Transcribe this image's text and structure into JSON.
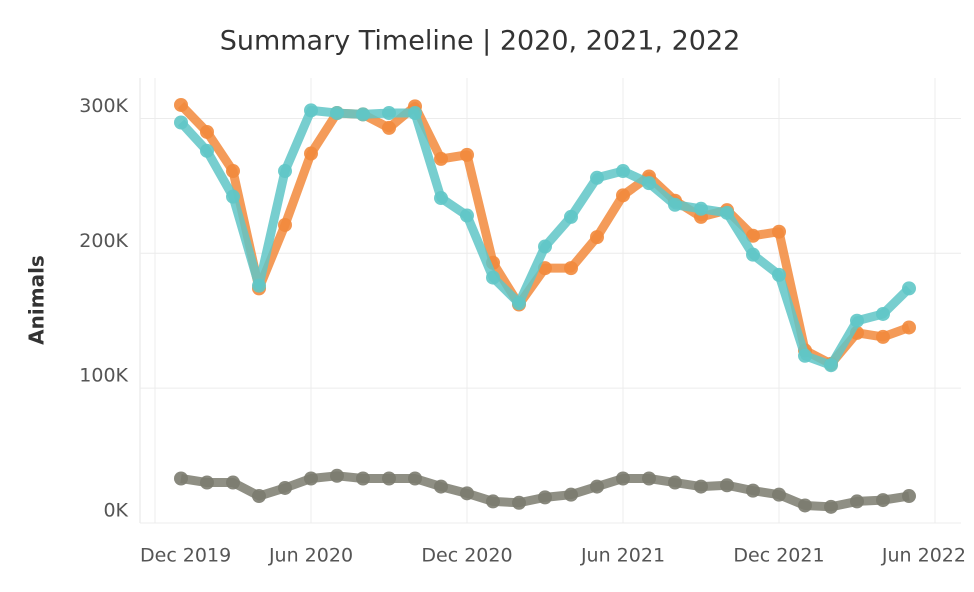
{
  "chart_data": {
    "type": "line",
    "title": "Summary Timeline | 2020, 2021, 2022",
    "y_label": "Animals",
    "x": [
      "2020-01",
      "2020-02",
      "2020-03",
      "2020-04",
      "2020-05",
      "2020-06",
      "2020-07",
      "2020-08",
      "2020-09",
      "2020-10",
      "2020-11",
      "2020-12",
      "2021-01",
      "2021-02",
      "2021-03",
      "2021-04",
      "2021-05",
      "2021-06",
      "2021-07",
      "2021-08",
      "2021-09",
      "2021-10",
      "2021-11",
      "2021-12",
      "2022-01",
      "2022-02",
      "2022-03",
      "2022-04",
      "2022-05"
    ],
    "series": [
      {
        "color": "#7b7b6f",
        "values": [
          33000,
          30000,
          30000,
          20000,
          26000,
          33000,
          35000,
          33000,
          33000,
          33000,
          27000,
          22000,
          16000,
          15000,
          19000,
          21000,
          27000,
          33000,
          33000,
          30000,
          27000,
          28000,
          24000,
          21000,
          13000,
          12000,
          16000,
          17000,
          20000
        ]
      },
      {
        "color": "#f28a3c",
        "values": [
          310000,
          290000,
          261000,
          174000,
          221000,
          274000,
          304000,
          303000,
          293000,
          309000,
          270000,
          273000,
          193000,
          162000,
          189000,
          189000,
          212000,
          243000,
          257000,
          239000,
          227000,
          232000,
          213000,
          216000,
          128000,
          118000,
          141000,
          138000,
          145000
        ]
      },
      {
        "color": "#5fc6c7",
        "values": [
          297000,
          276000,
          242000,
          176000,
          261000,
          306000,
          304000,
          303000,
          304000,
          304000,
          241000,
          228000,
          182000,
          163000,
          205000,
          227000,
          256000,
          261000,
          252000,
          236000,
          233000,
          230000,
          199000,
          184000,
          124000,
          117000,
          150000,
          155000,
          174000
        ]
      }
    ],
    "xlim": [
      "2019-11",
      "2022-07"
    ],
    "xticks": [
      {
        "value": "2019-12",
        "label": "Dec 2019"
      },
      {
        "value": "2020-06",
        "label": "Jun 2020"
      },
      {
        "value": "2020-12",
        "label": "Dec 2020"
      },
      {
        "value": "2021-06",
        "label": "Jun 2021"
      },
      {
        "value": "2021-12",
        "label": "Dec 2021"
      },
      {
        "value": "2022-06",
        "label": "Jun 2022"
      }
    ],
    "ylim": [
      0,
      330000
    ],
    "yticks": [
      {
        "value": 0,
        "label": "0K"
      },
      {
        "value": 100000,
        "label": "100K"
      },
      {
        "value": 200000,
        "label": "200K"
      },
      {
        "value": 300000,
        "label": "300K"
      }
    ],
    "grid": true
  }
}
